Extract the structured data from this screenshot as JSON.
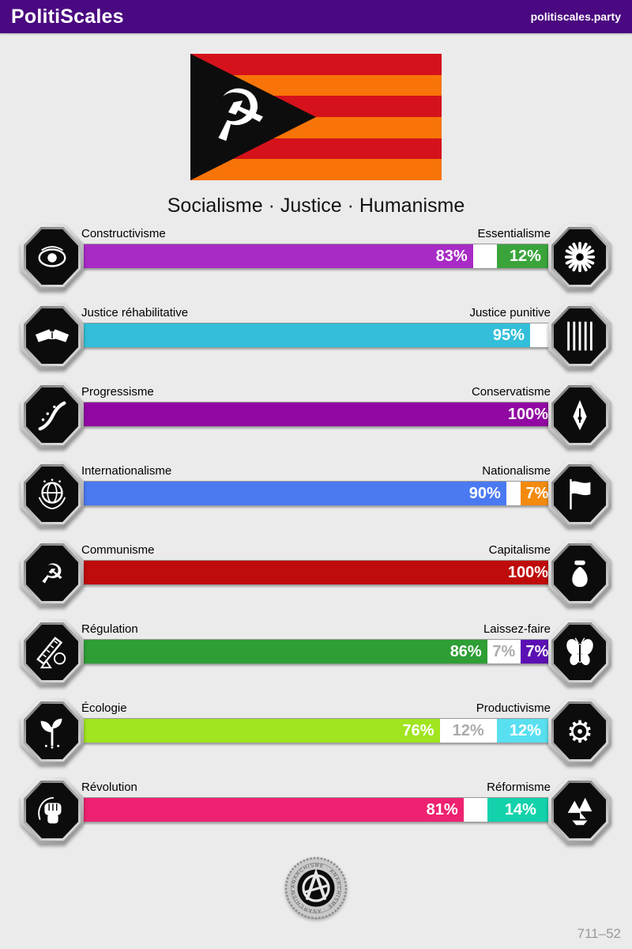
{
  "header": {
    "title": "PolitiScales",
    "domain": "politiscales.party"
  },
  "flag": {
    "stripe_colors": [
      "#D5121B",
      "#F87408"
    ],
    "stripe_count": 6,
    "triangle_color": "#0d0d0d",
    "emblem": "☭"
  },
  "slogan": "Socialisme · Justice · Humanisme",
  "axes": [
    {
      "left_label": "Constructivisme",
      "right_label": "Essentialisme",
      "left_pct": 83,
      "neutral_pct": 5,
      "right_pct": 12,
      "neutral_label": "",
      "left_color": "#A82BC5",
      "right_color": "#3AA43B",
      "left_icon": "eye",
      "right_icon": "flower"
    },
    {
      "left_label": "Justice réhabilitative",
      "right_label": "Justice punitive",
      "left_pct": 95,
      "neutral_pct": 5,
      "right_pct": 0,
      "neutral_label": "",
      "left_color": "#33BFD9",
      "right_color": "#33BFD9",
      "left_icon": "handshake",
      "right_icon": "prison"
    },
    {
      "left_label": "Progressisme",
      "right_label": "Conservatisme",
      "left_pct": 100,
      "neutral_pct": 0,
      "right_pct": 0,
      "neutral_label": "",
      "left_color": "#9109A2",
      "right_color": "#9109A2",
      "left_icon": "wave",
      "right_icon": "pen"
    },
    {
      "left_label": "Internationalisme",
      "right_label": "Nationalisme",
      "left_pct": 90,
      "neutral_pct": 3,
      "right_pct": 7,
      "neutral_label": "",
      "left_color": "#4A79F2",
      "right_color": "#F28A0E",
      "left_icon": "globe",
      "right_icon": "flag"
    },
    {
      "left_label": "Communisme",
      "right_label": "Capitalisme",
      "left_pct": 100,
      "neutral_pct": 0,
      "right_pct": 0,
      "neutral_label": "",
      "left_color": "#BF0B0B",
      "right_color": "#BF0B0B",
      "left_icon": "hammer-sickle",
      "right_icon": "moneybag"
    },
    {
      "left_label": "Régulation",
      "right_label": "Laissez-faire",
      "left_pct": 86,
      "neutral_pct": 7,
      "right_pct": 7,
      "neutral_label": "7%",
      "left_color": "#2E9E35",
      "right_color": "#5C10B4",
      "left_icon": "ruler",
      "right_icon": "butterfly"
    },
    {
      "left_label": "Écologie",
      "right_label": "Productivisme",
      "left_pct": 76,
      "neutral_pct": 12,
      "right_pct": 12,
      "neutral_label": "12%",
      "left_color": "#A0E51F",
      "right_color": "#59E0F0",
      "left_icon": "sprout",
      "right_icon": "gear"
    },
    {
      "left_label": "Révolution",
      "right_label": "Réformisme",
      "left_pct": 81,
      "neutral_pct": 5,
      "right_pct": 14,
      "neutral_label": "",
      "left_color": "#EE2270",
      "right_color": "#13D2AB",
      "left_icon": "fist",
      "right_icon": "boat"
    }
  ],
  "footer": {
    "badge_text": "ANARCHISME",
    "code": "711–52"
  }
}
